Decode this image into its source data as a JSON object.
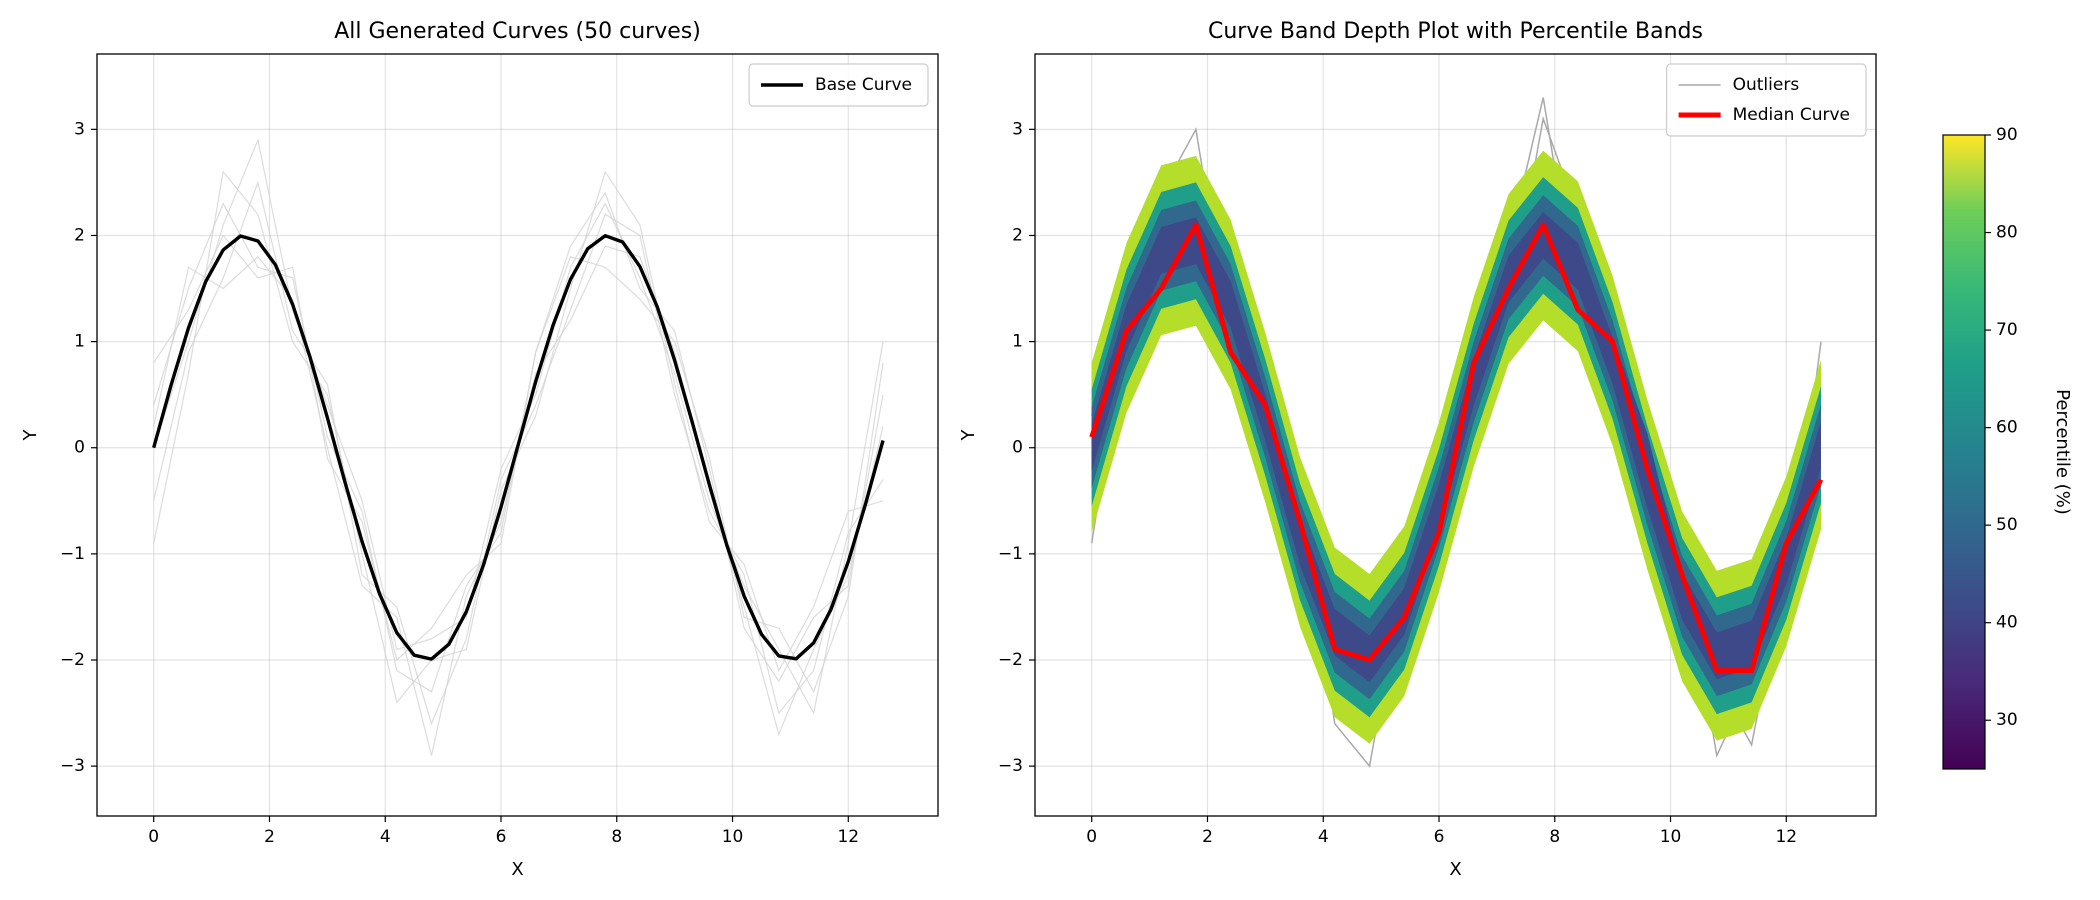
{
  "chart_data": [
    {
      "type": "line",
      "title": "All Generated Curves (50 curves)",
      "xlabel": "X",
      "ylabel": "Y",
      "xlim": [
        -0.98,
        13.55
      ],
      "ylim": [
        -3.47,
        3.71
      ],
      "xticks": [
        0,
        2,
        4,
        6,
        8,
        10,
        12
      ],
      "yticks": [
        {
          "value": -3,
          "label": "−3"
        },
        {
          "value": -2,
          "label": "−2"
        },
        {
          "value": -1,
          "label": "−1"
        },
        0,
        1,
        2,
        3
      ],
      "grid": true,
      "legend": "upper right",
      "x": [
        0,
        0.6,
        1.2,
        1.8,
        2.4,
        3.0,
        3.6,
        4.2,
        4.8,
        5.4,
        6.0,
        6.6,
        7.2,
        7.8,
        8.4,
        9.0,
        9.6,
        10.2,
        10.8,
        11.4,
        12.0,
        12.6
      ],
      "background_curves": {
        "color": "#d3d3d3",
        "values": [
          [
            0.4,
            1.5,
            2.3,
            1.7,
            1.6,
            0.1,
            -0.6,
            -2.1,
            -2.3,
            -1.3,
            -0.8,
            0.9,
            1.9,
            2.4,
            1.5,
            1.1,
            -0.2,
            -1.7,
            -2.2,
            -1.6,
            -1.3,
            0.5
          ],
          [
            -0.5,
            0.9,
            1.6,
            2.5,
            1.1,
            0.6,
            -1.2,
            -1.5,
            -2.6,
            -1.8,
            -0.3,
            0.4,
            1.3,
            2.2,
            2.0,
            0.5,
            -0.6,
            -1.2,
            -2.5,
            -2.1,
            -0.8,
            -0.3
          ],
          [
            0.8,
            1.3,
            2.0,
            1.6,
            1.7,
            -0.1,
            -0.7,
            -2.0,
            -1.7,
            -1.2,
            -0.9,
            0.9,
            1.8,
            1.7,
            1.4,
            1.0,
            -0.1,
            -1.6,
            -1.7,
            -2.3,
            -1.4,
            0.8
          ],
          [
            -0.9,
            0.7,
            2.6,
            2.2,
            1.0,
            0.5,
            -1.0,
            -2.4,
            -2.0,
            -1.9,
            -0.4,
            0.3,
            1.5,
            2.6,
            2.1,
            0.6,
            -0.7,
            -1.1,
            -2.1,
            -1.5,
            -0.6,
            -0.5
          ],
          [
            0.2,
            1.7,
            1.5,
            1.8,
            1.4,
            0.0,
            -1.3,
            -1.6,
            -2.9,
            -1.4,
            -0.7,
            0.7,
            1.2,
            1.9,
            1.8,
            0.9,
            -0.4,
            -1.5,
            -2.7,
            -1.9,
            -1.2,
            0.2
          ],
          [
            0.0,
            1.0,
            2.1,
            2.9,
            1.3,
            0.4,
            -0.5,
            -1.9,
            -1.8,
            -1.6,
            -0.2,
            0.5,
            1.7,
            2.3,
            1.6,
            0.7,
            -0.5,
            -1.3,
            -1.9,
            -2.5,
            -0.9,
            1.0
          ]
        ]
      },
      "series": [
        {
          "name": "Base Curve",
          "color": "#000000",
          "x": [
            0,
            0.3,
            0.6,
            0.9,
            1.2,
            1.5,
            1.8,
            2.1,
            2.4,
            2.7,
            3.0,
            3.3,
            3.6,
            3.9,
            4.2,
            4.5,
            4.8,
            5.1,
            5.4,
            5.7,
            6.0,
            6.3,
            6.6,
            6.9,
            7.2,
            7.5,
            7.8,
            8.1,
            8.4,
            8.7,
            9.0,
            9.3,
            9.6,
            9.9,
            10.2,
            10.5,
            10.8,
            11.1,
            11.4,
            11.7,
            12.0,
            12.3,
            12.6
          ],
          "values": [
            0,
            0.591,
            1.129,
            1.567,
            1.864,
            1.995,
            1.948,
            1.726,
            1.351,
            0.855,
            0.282,
            -0.315,
            -0.885,
            -1.375,
            -1.743,
            -1.955,
            -1.992,
            -1.851,
            -1.545,
            -1.101,
            -0.559,
            0.034,
            0.623,
            1.156,
            1.587,
            1.876,
            1.998,
            1.939,
            1.708,
            1.326,
            0.824,
            0.248,
            -0.349,
            -0.915,
            -1.398,
            -1.758,
            -1.961,
            -1.989,
            -1.839,
            -1.524,
            -1.073,
            -0.527,
            0.068
          ]
        }
      ]
    },
    {
      "type": "band",
      "title": "Curve Band Depth Plot with Percentile Bands",
      "xlabel": "X",
      "ylabel": "Y",
      "xlim": [
        -0.98,
        13.55
      ],
      "ylim": [
        -3.47,
        3.71
      ],
      "xticks": [
        0,
        2,
        4,
        6,
        8,
        10,
        12
      ],
      "yticks": [
        {
          "value": -3,
          "label": "−3"
        },
        {
          "value": -2,
          "label": "−2"
        },
        {
          "value": -1,
          "label": "−1"
        },
        0,
        1,
        2,
        3
      ],
      "grid": true,
      "legend": "upper right",
      "x": [
        0,
        0.6,
        1.2,
        1.8,
        2.4,
        3.0,
        3.6,
        4.2,
        4.8,
        5.4,
        6.0,
        6.6,
        7.2,
        7.8,
        8.4,
        9.0,
        9.6,
        10.2,
        10.8,
        11.4,
        12.0,
        12.6
      ],
      "bands": [
        {
          "color": "#b5de2b",
          "lower": [
            -0.8,
            0.33,
            1.06,
            1.15,
            0.55,
            -0.52,
            -1.69,
            -2.54,
            -2.79,
            -2.34,
            -1.36,
            -0.18,
            0.79,
            1.2,
            0.91,
            0.02,
            -1.15,
            -2.2,
            -2.76,
            -2.65,
            -1.87,
            -0.77
          ],
          "upper": [
            0.8,
            1.93,
            2.66,
            2.75,
            2.15,
            1.08,
            -0.09,
            -0.94,
            -1.19,
            -0.74,
            0.24,
            1.42,
            2.39,
            2.8,
            2.51,
            1.62,
            0.45,
            -0.6,
            -1.16,
            -1.05,
            -0.27,
            0.83
          ]
        },
        {
          "color": "#1f9e89",
          "lower": [
            -0.55,
            0.58,
            1.31,
            1.4,
            0.8,
            -0.27,
            -1.44,
            -2.29,
            -2.54,
            -2.09,
            -1.11,
            0.07,
            1.04,
            1.45,
            1.16,
            0.27,
            -0.9,
            -1.95,
            -2.51,
            -2.4,
            -1.62,
            -0.52
          ],
          "upper": [
            0.55,
            1.68,
            2.41,
            2.5,
            1.9,
            0.83,
            -0.34,
            -1.19,
            -1.44,
            -0.99,
            -0.01,
            1.17,
            2.14,
            2.55,
            2.26,
            1.37,
            0.2,
            -0.85,
            -1.41,
            -1.3,
            -0.52,
            0.58
          ]
        },
        {
          "color": "#31688e",
          "lower": [
            -0.38,
            0.75,
            1.48,
            1.57,
            0.97,
            -0.1,
            -1.27,
            -2.12,
            -2.37,
            -1.92,
            -0.94,
            0.24,
            1.21,
            1.62,
            1.33,
            0.44,
            -0.73,
            -1.78,
            -2.34,
            -2.23,
            -1.45,
            -0.35
          ],
          "upper": [
            0.38,
            1.51,
            2.24,
            2.33,
            1.73,
            0.66,
            -0.51,
            -1.36,
            -1.61,
            -1.16,
            -0.18,
            1.0,
            1.97,
            2.38,
            2.09,
            1.2,
            0.03,
            -1.02,
            -1.58,
            -1.47,
            -0.69,
            0.41
          ]
        },
        {
          "color": "#3e4989",
          "lower": [
            -0.22,
            0.91,
            1.64,
            1.73,
            1.13,
            0.06,
            -1.11,
            -1.96,
            -2.21,
            -1.76,
            -0.78,
            0.4,
            1.37,
            1.78,
            1.49,
            0.6,
            -0.57,
            -1.62,
            -2.18,
            -2.07,
            -1.29,
            -0.19
          ],
          "upper": [
            0.22,
            1.35,
            2.08,
            2.17,
            1.57,
            0.5,
            -0.67,
            -1.52,
            -1.77,
            -1.32,
            -0.34,
            0.84,
            1.81,
            2.22,
            1.93,
            1.04,
            0.13,
            -1.18,
            -1.74,
            -1.63,
            -0.85,
            0.25
          ]
        }
      ],
      "series": [
        {
          "name": "Outliers",
          "color": "#a9a9a9",
          "curves": [
            [
              -0.9,
              1.2,
              2.4,
              3.0,
              1.0,
              0.2,
              -0.5,
              -2.6,
              -3.0,
              -1.2,
              -0.9,
              1.1,
              1.9,
              3.3,
              1.3,
              1.2,
              -0.1,
              -1.9,
              -2.4,
              -1.5,
              -1.5,
              1.0
            ],
            [
              0.6,
              0.6,
              1.9,
              2.6,
              1.8,
              0.7,
              -1.4,
              -1.4,
              -2.7,
              -2.0,
              0.1,
              0.3,
              1.3,
              3.1,
              2.2,
              0.4,
              -0.8,
              -1.0,
              -2.9,
              -2.2,
              -0.5,
              -0.4
            ],
            [
              0.3,
              1.6,
              1.4,
              1.8,
              1.2,
              -0.3,
              -1.0,
              -2.2,
              -2.4,
              -1.7,
              -0.6,
              0.9,
              1.6,
              1.8,
              2.0,
              0.9,
              -0.4,
              -1.6,
              -2.2,
              -2.8,
              -1.1,
              0.5
            ]
          ]
        },
        {
          "name": "Median Curve",
          "color": "#ff0000",
          "values": [
            0.1,
            1.1,
            1.5,
            2.1,
            0.9,
            0.4,
            -0.7,
            -1.9,
            -2.0,
            -1.6,
            -0.8,
            0.8,
            1.5,
            2.1,
            1.3,
            1.0,
            -0.2,
            -1.2,
            -2.1,
            -2.1,
            -0.9,
            -0.3
          ]
        }
      ],
      "colorbar": {
        "label": "Percentile (%)",
        "lim": [
          25,
          90
        ],
        "ticks": [
          30,
          40,
          50,
          60,
          70,
          80,
          90
        ]
      }
    }
  ]
}
